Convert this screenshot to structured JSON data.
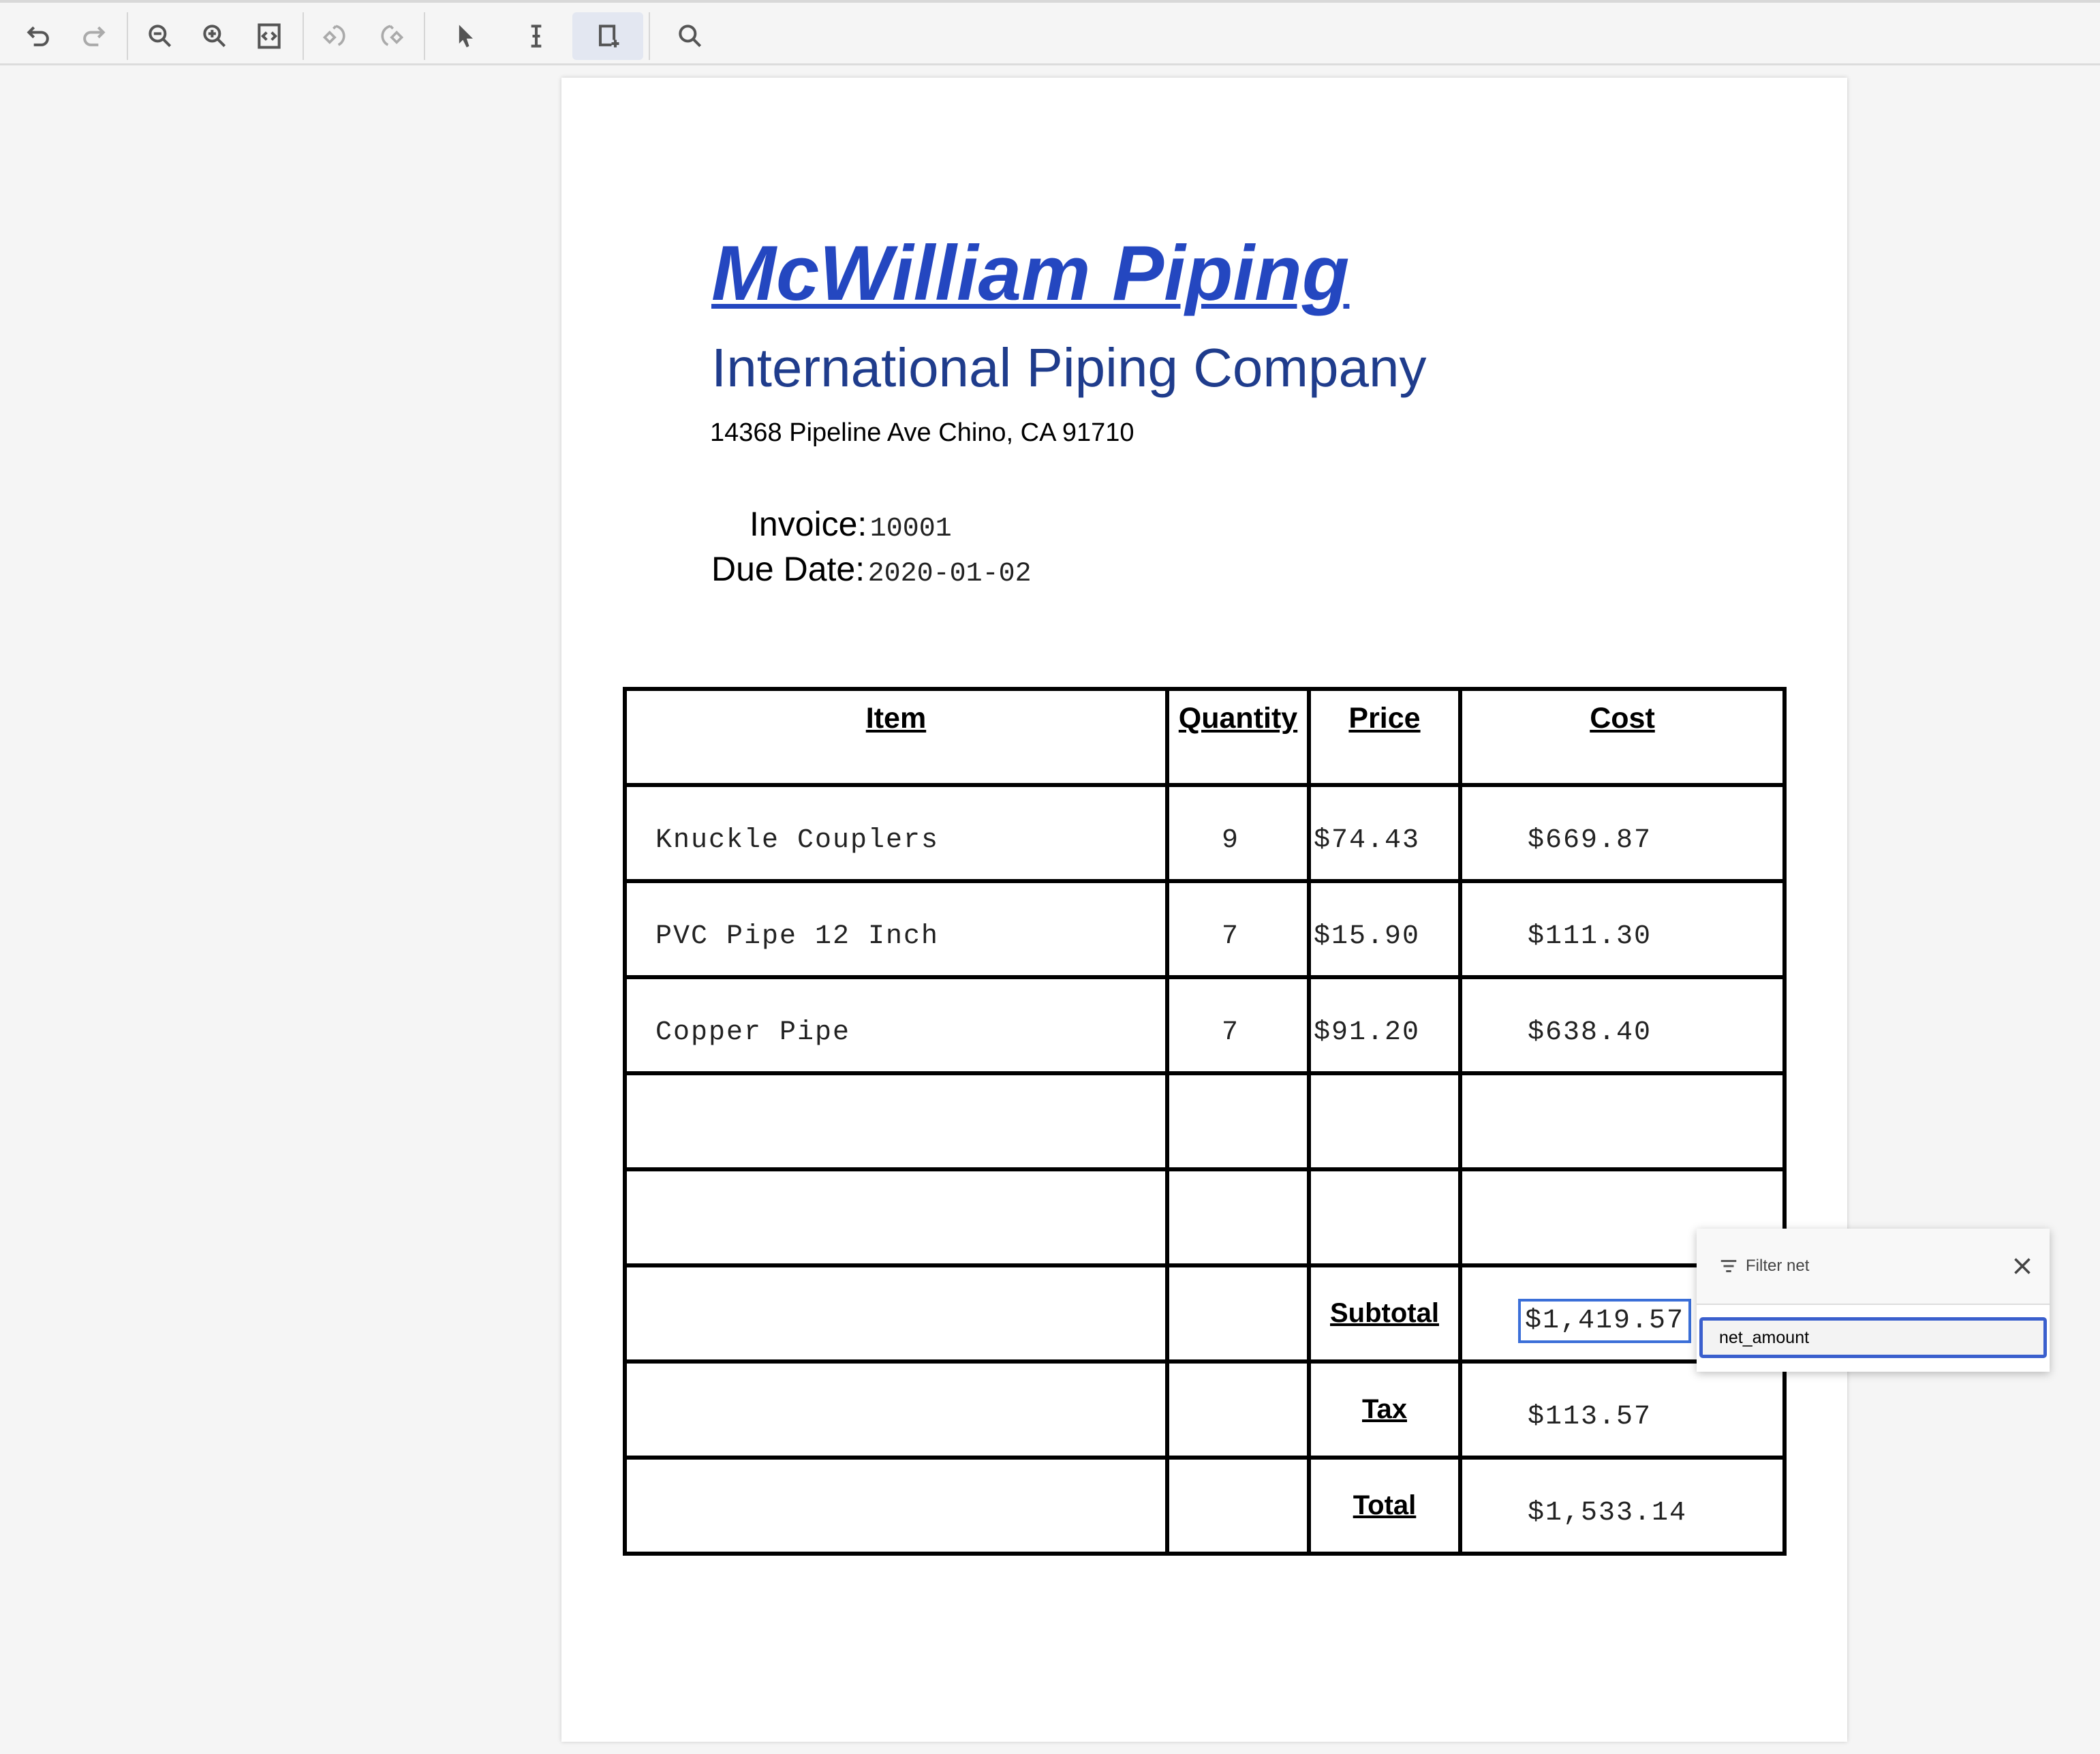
{
  "toolbar": {
    "icons": [
      "undo-icon",
      "redo-icon",
      "zoom-out-icon",
      "zoom-in-icon",
      "fit-page-icon",
      "rotate-left-icon",
      "rotate-right-icon",
      "select-pointer-icon",
      "text-select-icon",
      "add-region-icon",
      "search-icon"
    ],
    "active": "add-region-icon"
  },
  "document": {
    "title": "McWilliam Piping",
    "subtitle": "International Piping Company",
    "address": "14368 Pipeline Ave Chino, CA 91710",
    "invoice_label": "Invoice:",
    "invoice_value": "10001",
    "due_label": "Due Date:",
    "due_value": "2020-01-02",
    "table": {
      "headers": [
        "Item",
        "Quantity",
        "Price",
        "Cost"
      ],
      "rows": [
        [
          "Knuckle Couplers",
          "9",
          "$74.43",
          "$669.87"
        ],
        [
          "PVC Pipe 12 Inch",
          "7",
          "$15.90",
          "$111.30"
        ],
        [
          "Copper Pipe",
          "7",
          "$91.20",
          "$638.40"
        ]
      ],
      "subtotal_label": "Subtotal",
      "subtotal": "$1,419.57",
      "tax_label": "Tax",
      "tax": "$113.57",
      "total_label": "Total",
      "total": "$1,533.14"
    }
  },
  "colors": {
    "title": "#2447c0",
    "subtitle": "#1f3c8c",
    "highlight": "#3b6fd8"
  },
  "filter_popup": {
    "title": "Filter net",
    "input_value": "net_amount"
  }
}
